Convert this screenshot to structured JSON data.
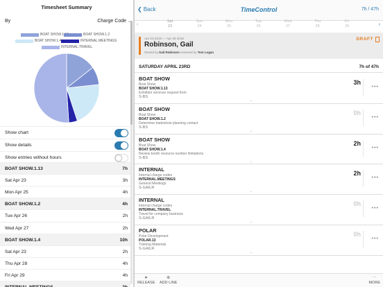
{
  "summary": {
    "title": "Timesheet Summary",
    "by_label": "By",
    "by_value": "Charge Code"
  },
  "legend": [
    {
      "label": "BOAT SHOW.1.13",
      "color": "#8fa3d9"
    },
    {
      "label": "BOAT SHOW.1.2",
      "color": "#7b8fd0"
    },
    {
      "label": "BOAT SHOW.1.4",
      "color": "#cde8f6"
    },
    {
      "label": "INTERNAL.MEETINGS",
      "color": "#2323a8"
    },
    {
      "label": "INTERNAL.TRAVEL",
      "color": "#a9b4e8"
    }
  ],
  "chart_data": {
    "type": "pie",
    "categories": [
      "BOAT SHOW.1.13",
      "BOAT SHOW.1.2",
      "BOAT SHOW.1.4",
      "INTERNAL.MEETINGS",
      "INTERNAL.TRAVEL"
    ],
    "values": [
      7,
      4,
      10,
      2,
      24
    ],
    "colors": [
      "#8fa3d9",
      "#7b8fd0",
      "#cde8f6",
      "#2323a8",
      "#a9b4e8"
    ]
  },
  "toggles": [
    {
      "label": "Show chart",
      "on": true
    },
    {
      "label": "Show details",
      "on": true
    },
    {
      "label": "Show entries without hours",
      "on": false
    }
  ],
  "summary_rows": [
    {
      "label": "BOAT SHOW.1.13",
      "hours": "7h",
      "group": true
    },
    {
      "label": "Sat Apr 23",
      "hours": "3h",
      "group": false
    },
    {
      "label": "Mon Apr 25",
      "hours": "4h",
      "group": false
    },
    {
      "label": "BOAT SHOW.1.2",
      "hours": "4h",
      "group": true
    },
    {
      "label": "Tue Apr 26",
      "hours": "2h",
      "group": false
    },
    {
      "label": "Wed Apr 27",
      "hours": "2h",
      "group": false
    },
    {
      "label": "BOAT SHOW.1.4",
      "hours": "10h",
      "group": true
    },
    {
      "label": "Sat Apr 23",
      "hours": "2h",
      "group": false
    },
    {
      "label": "Thu Apr 28",
      "hours": "4h",
      "group": false
    },
    {
      "label": "Fri Apr 29",
      "hours": "4h",
      "group": false
    },
    {
      "label": "INTERNAL.MEETINGS",
      "hours": "2h",
      "group": true
    }
  ],
  "nav": {
    "back_label": "Back",
    "brand": "TimeControl",
    "hours_label": "7h / 47h"
  },
  "days": [
    {
      "dow": "Sat",
      "num": "23",
      "selected": true
    },
    {
      "dow": "Sun",
      "num": "24",
      "selected": false
    },
    {
      "dow": "Mon",
      "num": "25",
      "selected": false
    },
    {
      "dow": "Tue",
      "num": "26",
      "selected": false
    },
    {
      "dow": "Wed",
      "num": "27",
      "selected": false
    },
    {
      "dow": "Thu",
      "num": "28",
      "selected": false
    },
    {
      "dow": "Fri",
      "num": "29",
      "selected": false
    }
  ],
  "sheet": {
    "range": "Apr 23 2016 — Apr 29 2016",
    "name": "Robinson, Gail",
    "owner_prefix": "Owned by",
    "owner": "Gail Robinson",
    "reviewer_prefix": "reviewed by",
    "reviewer": "Tom Logan",
    "status": "DRAFT"
  },
  "day_header": {
    "label": "SATURDAY APRIL 23RD",
    "hours": "7h of 47h"
  },
  "entries": [
    {
      "project": "BOAT SHOW",
      "project_desc": "Boat Show",
      "code": "BOAT SHOW.1.13",
      "code_desc": "Exhibitor services request form",
      "type": "S-BS",
      "hours": "3h",
      "dim": false
    },
    {
      "project": "BOAT SHOW",
      "project_desc": "Boat Show",
      "code": "BOAT SHOW.1.2",
      "code_desc": "Determine tradeshow planning contact",
      "type": "S-BS",
      "hours": "0h",
      "dim": true
    },
    {
      "project": "BOAT SHOW",
      "project_desc": "Boat Show",
      "code": "BOAT SHOW.1.4",
      "code_desc": "Review booth resource number limitations",
      "type": "S-BS",
      "hours": "2h",
      "dim": false
    },
    {
      "project": "INTERNAL",
      "project_desc": "Internal charge codes",
      "code": "INTERNAL.MEETINGS",
      "code_desc": "General Meetings",
      "type": "S-GAILR",
      "hours": "2h",
      "dim": false
    },
    {
      "project": "INTERNAL",
      "project_desc": "Internal charge codes",
      "code": "INTERNAL.TRAVEL",
      "code_desc": "Travel for company business",
      "type": "S-GAILR",
      "hours": "0h",
      "dim": true
    },
    {
      "project": "POLAR",
      "project_desc": "Polar Development",
      "code": "POLAR.13",
      "code_desc": "Training Materials",
      "type": "S-GAILR",
      "hours": "0h",
      "dim": true
    }
  ],
  "bottom": {
    "release": "RELEASE",
    "add_line": "ADD LINE",
    "more": "MORE"
  }
}
